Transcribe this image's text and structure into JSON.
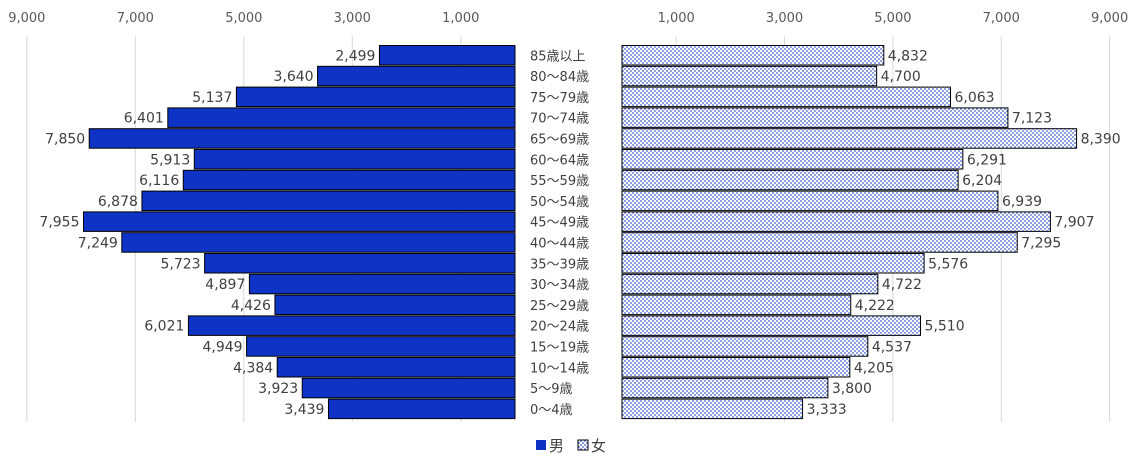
{
  "chart_data": {
    "type": "bar",
    "orientation": "horizontal",
    "layout": "population-pyramid",
    "categories": [
      "85歳以上",
      "80〜84歳",
      "75〜79歳",
      "70〜74歳",
      "65〜69歳",
      "60〜64歳",
      "55〜59歳",
      "50〜54歳",
      "45〜49歳",
      "40〜44歳",
      "35〜39歳",
      "30〜34歳",
      "25〜29歳",
      "20〜24歳",
      "15〜19歳",
      "10〜14歳",
      "5〜9歳",
      "0〜4歳"
    ],
    "series": [
      {
        "name": "男",
        "side": "left",
        "color": "#0f33c5",
        "values": [
          2499,
          3640,
          5137,
          6401,
          7850,
          5913,
          6116,
          6878,
          7955,
          7249,
          5723,
          4897,
          4426,
          6021,
          4949,
          4384,
          3923,
          3439
        ],
        "labels": [
          "2,499",
          "3,640",
          "5,137",
          "6,401",
          "7,850",
          "5,913",
          "6,116",
          "6,878",
          "7,955",
          "7,249",
          "5,723",
          "4,897",
          "4,426",
          "6,021",
          "4,949",
          "4,384",
          "3,923",
          "3,439"
        ]
      },
      {
        "name": "女",
        "side": "right",
        "color": "#6f8bdc",
        "pattern": "dots",
        "values": [
          4832,
          4700,
          6063,
          7123,
          8390,
          6291,
          6204,
          6939,
          7907,
          7295,
          5576,
          4722,
          4222,
          5510,
          4537,
          4205,
          3800,
          3333
        ],
        "labels": [
          "4,832",
          "4,700",
          "6,063",
          "7,123",
          "8,390",
          "6,291",
          "6,204",
          "6,939",
          "7,907",
          "7,295",
          "5,576",
          "4,722",
          "4,222",
          "5,510",
          "4,537",
          "4,205",
          "3,800",
          "3,333"
        ]
      }
    ],
    "ticks": [
      1000,
      3000,
      5000,
      7000,
      9000
    ],
    "tick_labels": [
      "1,000",
      "3,000",
      "5,000",
      "7,000",
      "9,000"
    ],
    "xlim": [
      0,
      9000
    ],
    "gridlines": true,
    "legend_position": "bottom"
  }
}
